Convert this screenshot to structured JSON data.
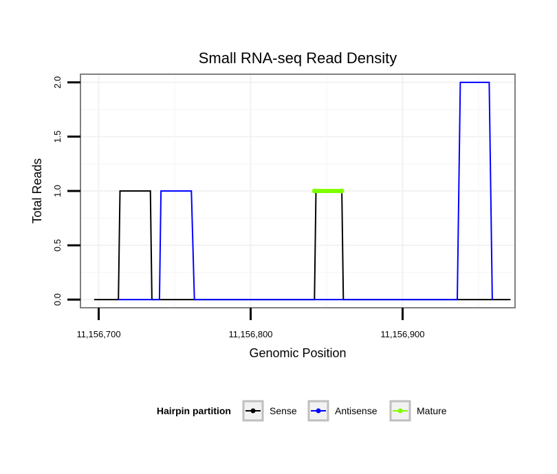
{
  "chart_data": {
    "type": "line",
    "title": "Small RNA-seq Read Density",
    "xlabel": "Genomic Position",
    "ylabel": "Total Reads",
    "xlim": [
      11156688,
      11156974
    ],
    "ylim": [
      -0.075,
      2.075
    ],
    "x_ticks": [
      {
        "value": 11156700,
        "label": "11,156,700"
      },
      {
        "value": 11156800,
        "label": "11,156,800"
      },
      {
        "value": 11156900,
        "label": "11,156,900"
      }
    ],
    "y_ticks": [
      {
        "value": 0.0,
        "label": "0.0"
      },
      {
        "value": 0.5,
        "label": "0.5"
      },
      {
        "value": 1.0,
        "label": "1.0"
      },
      {
        "value": 1.5,
        "label": "1.5"
      },
      {
        "value": 2.0,
        "label": "2.0"
      }
    ],
    "grid": true,
    "legend": {
      "title": "Hairpin partition",
      "position": "bottom",
      "entries": [
        {
          "label": "Sense",
          "color": "#000000"
        },
        {
          "label": "Antisense",
          "color": "#0000ff"
        },
        {
          "label": "Mature",
          "color": "#7fff00"
        }
      ]
    },
    "series": [
      {
        "name": "Sense",
        "color": "#000000",
        "points": [
          [
            11156697,
            0
          ],
          [
            11156713,
            0
          ],
          [
            11156714,
            1
          ],
          [
            11156734,
            1
          ],
          [
            11156735,
            0
          ],
          [
            11156842,
            0
          ],
          [
            11156843,
            1
          ],
          [
            11156860,
            1
          ],
          [
            11156861,
            0
          ],
          [
            11156971,
            0
          ]
        ]
      },
      {
        "name": "Antisense",
        "color": "#0000ff",
        "points": [
          [
            11156713,
            0
          ],
          [
            11156740,
            0
          ],
          [
            11156741,
            1
          ],
          [
            11156761,
            1
          ],
          [
            11156763,
            0
          ],
          [
            11156842,
            0
          ],
          [
            11156861,
            0
          ],
          [
            11156936,
            0
          ],
          [
            11156938,
            2
          ],
          [
            11156957,
            2
          ],
          [
            11156959,
            0
          ]
        ]
      },
      {
        "name": "Mature",
        "color": "#7fff00",
        "points": [
          [
            11156842,
            1
          ],
          [
            11156860,
            1
          ]
        ]
      }
    ]
  }
}
